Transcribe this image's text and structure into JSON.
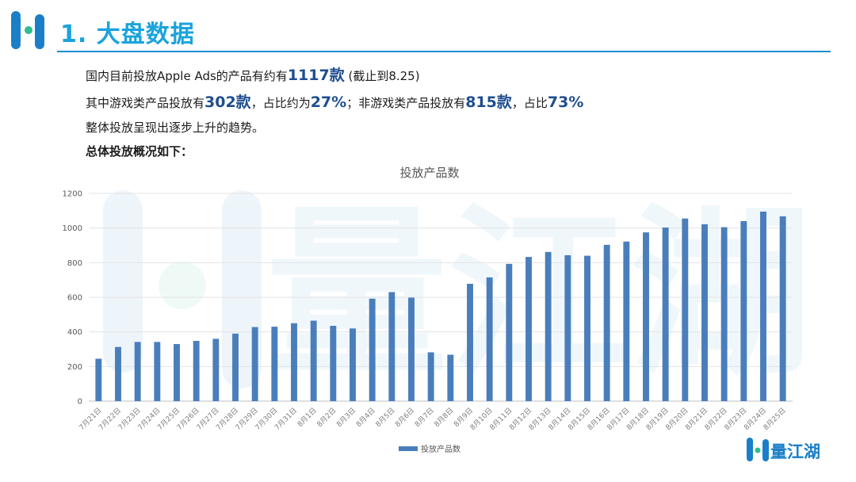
{
  "header": {
    "title": "1. 大盘数据"
  },
  "intro": {
    "line1": {
      "pre": "国内目前投放Apple Ads的产品有约有",
      "count": "1117款",
      "post": " (截止到8.25)"
    },
    "line2": {
      "a": "其中游戏类产品投放有",
      "b": "302款",
      "c": "，占比约为",
      "d": "27%",
      "e": "；非游戏类产品投放有",
      "f": "815款",
      "g": "，占比",
      "h": "73%"
    },
    "line3": "整体投放呈现出逐步上升的趋势。",
    "line4": "总体投放概况如下："
  },
  "brand": {
    "name": "量江湖",
    "watermark": "量江湖",
    "logo_color": "#1a7fc8",
    "logo_accent": "#2ebd8e"
  },
  "chart_data": {
    "type": "bar",
    "title": "投放产品数",
    "xlabel": "",
    "ylabel": "",
    "ylim": [
      0,
      1200
    ],
    "yticks": [
      0,
      200,
      400,
      600,
      800,
      1000,
      1200
    ],
    "grid": true,
    "legend": "bottom",
    "bar_color": "#4a7ebb",
    "categories": [
      "7月21日",
      "7月22日",
      "7月23日",
      "7月24日",
      "7月25日",
      "7月26日",
      "7月27日",
      "7月28日",
      "7月29日",
      "7月30日",
      "7月31日",
      "8月1日",
      "8月2日",
      "8月3日",
      "8月4日",
      "8月5日",
      "8月6日",
      "8月7日",
      "8月8日",
      "8月9日",
      "8月10日",
      "8月11日",
      "8月12日",
      "8月13日",
      "8月14日",
      "8月15日",
      "8月16日",
      "8月17日",
      "8月18日",
      "8月19日",
      "8月20日",
      "8月21日",
      "8月22日",
      "8月23日",
      "8月24日",
      "8月25日"
    ],
    "series": [
      {
        "name": "投放产品数",
        "values": [
          245,
          313,
          342,
          342,
          330,
          348,
          360,
          390,
          428,
          430,
          450,
          465,
          435,
          420,
          592,
          630,
          598,
          282,
          268,
          678,
          715,
          793,
          833,
          862,
          843,
          840,
          903,
          922,
          975,
          1003,
          1055,
          1022,
          1005,
          1040,
          1095,
          1068
        ]
      }
    ]
  }
}
